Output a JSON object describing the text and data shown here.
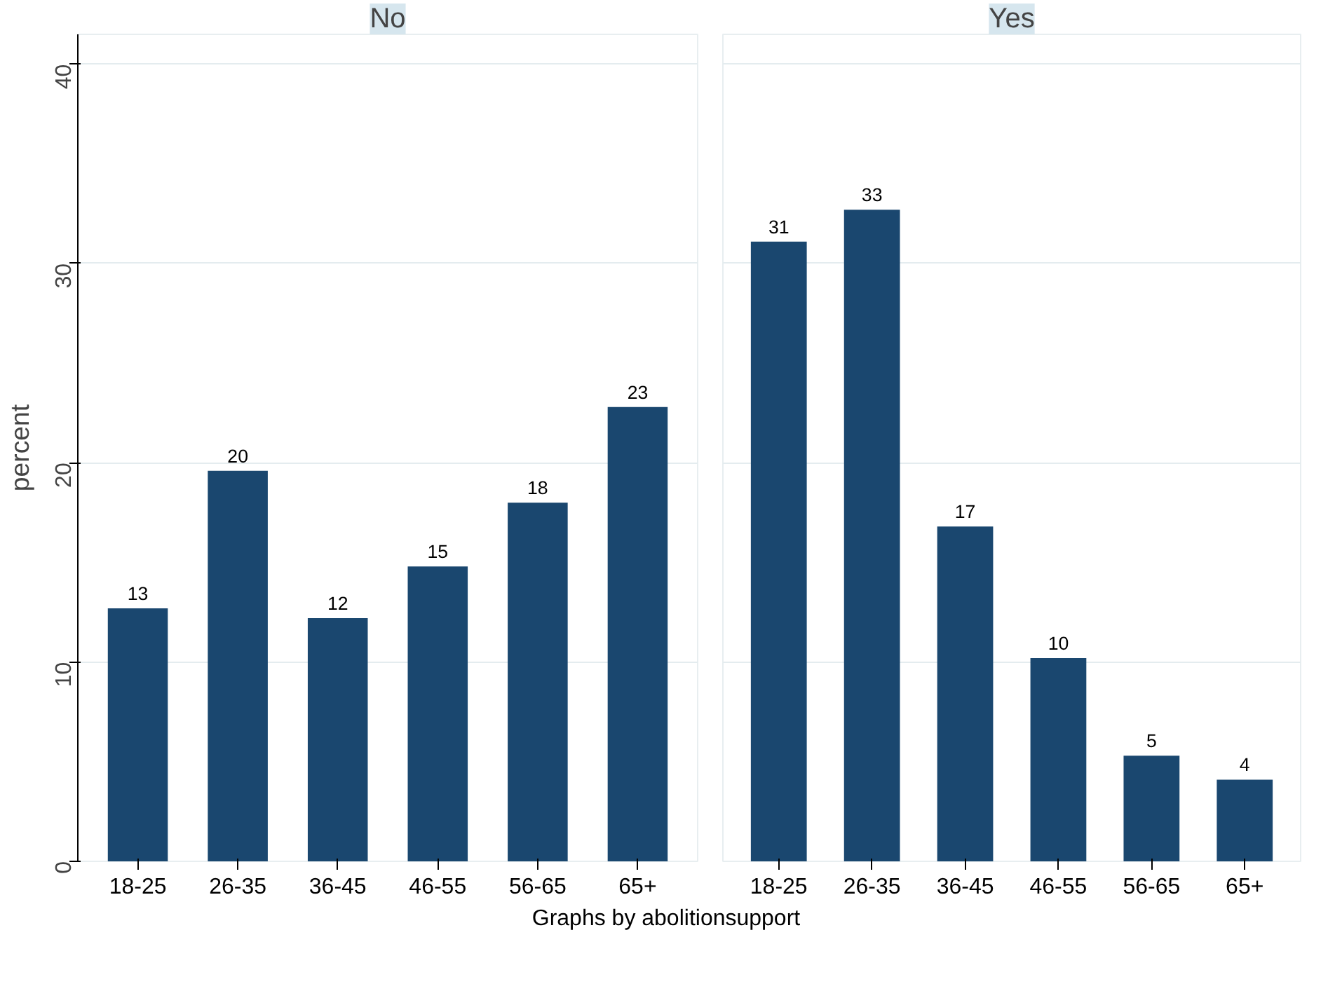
{
  "chart_data": [
    {
      "type": "bar",
      "title": "No",
      "ylabel": "percent",
      "categories": [
        "18-25",
        "26-35",
        "36-45",
        "46-55",
        "56-65",
        "65+"
      ],
      "values": [
        12.7,
        19.6,
        12.2,
        14.8,
        18.0,
        22.8
      ],
      "value_labels": [
        "13",
        "20",
        "12",
        "15",
        "18",
        "23"
      ],
      "color": "#1a476f",
      "ylim": [
        0,
        41.5
      ],
      "yticks": [
        0,
        10,
        20,
        30,
        40
      ],
      "grid": "y",
      "annotations": [
        "Graphs by abolitionsupport"
      ]
    },
    {
      "type": "bar",
      "title": "Yes",
      "categories": [
        "18-25",
        "26-35",
        "36-45",
        "46-55",
        "56-65",
        "65+"
      ],
      "values": [
        31.1,
        32.7,
        16.8,
        10.2,
        5.3,
        4.1
      ],
      "value_labels": [
        "31",
        "33",
        "17",
        "10",
        "5",
        "4"
      ],
      "color": "#1a476f",
      "ylim": [
        0,
        41.5
      ],
      "yticks": [
        0,
        10,
        20,
        30,
        40
      ],
      "grid": "y",
      "tick_labels": "x"
    }
  ]
}
